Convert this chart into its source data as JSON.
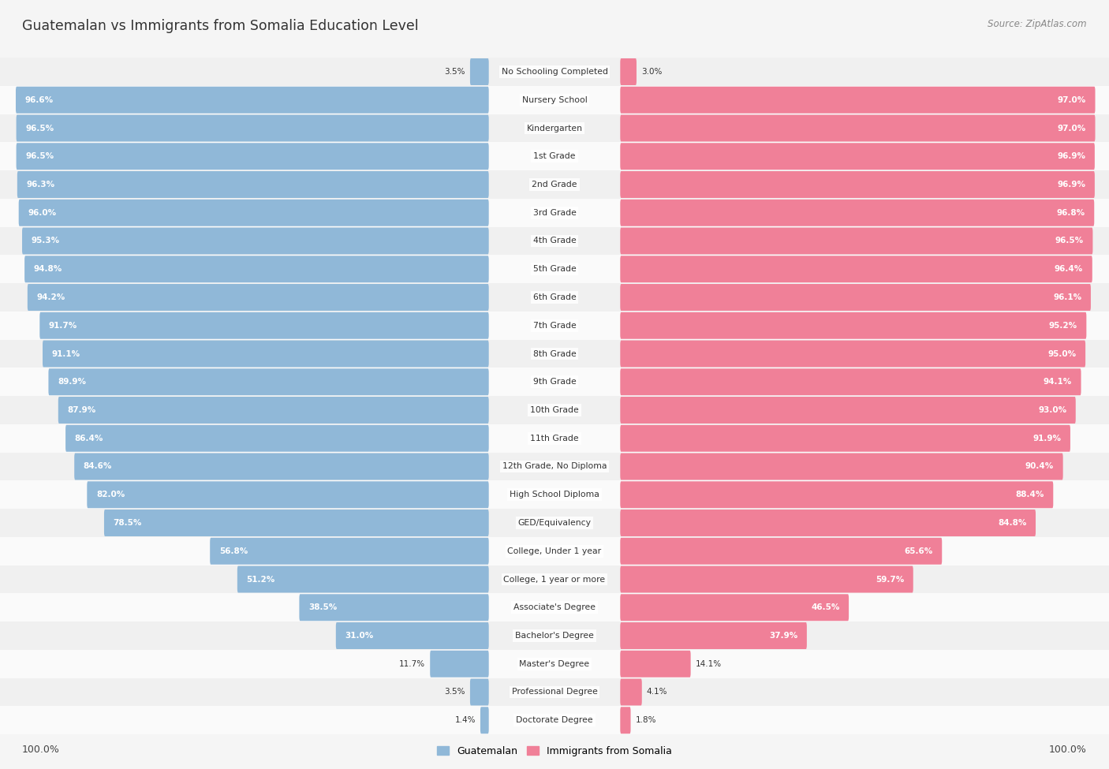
{
  "title": "Guatemalan vs Immigrants from Somalia Education Level",
  "source": "Source: ZipAtlas.com",
  "categories": [
    "No Schooling Completed",
    "Nursery School",
    "Kindergarten",
    "1st Grade",
    "2nd Grade",
    "3rd Grade",
    "4th Grade",
    "5th Grade",
    "6th Grade",
    "7th Grade",
    "8th Grade",
    "9th Grade",
    "10th Grade",
    "11th Grade",
    "12th Grade, No Diploma",
    "High School Diploma",
    "GED/Equivalency",
    "College, Under 1 year",
    "College, 1 year or more",
    "Associate's Degree",
    "Bachelor's Degree",
    "Master's Degree",
    "Professional Degree",
    "Doctorate Degree"
  ],
  "guatemalan": [
    3.5,
    96.6,
    96.5,
    96.5,
    96.3,
    96.0,
    95.3,
    94.8,
    94.2,
    91.7,
    91.1,
    89.9,
    87.9,
    86.4,
    84.6,
    82.0,
    78.5,
    56.8,
    51.2,
    38.5,
    31.0,
    11.7,
    3.5,
    1.4
  ],
  "somalia": [
    3.0,
    97.0,
    97.0,
    96.9,
    96.9,
    96.8,
    96.5,
    96.4,
    96.1,
    95.2,
    95.0,
    94.1,
    93.0,
    91.9,
    90.4,
    88.4,
    84.8,
    65.6,
    59.7,
    46.5,
    37.9,
    14.1,
    4.1,
    1.8
  ],
  "blue_color": "#90b8d8",
  "pink_color": "#f08098",
  "label_blue": "Guatemalan",
  "label_pink": "Immigrants from Somalia",
  "bg_color": "#f5f5f5",
  "row_bg_even": "#f0f0f0",
  "row_bg_odd": "#fafafa"
}
